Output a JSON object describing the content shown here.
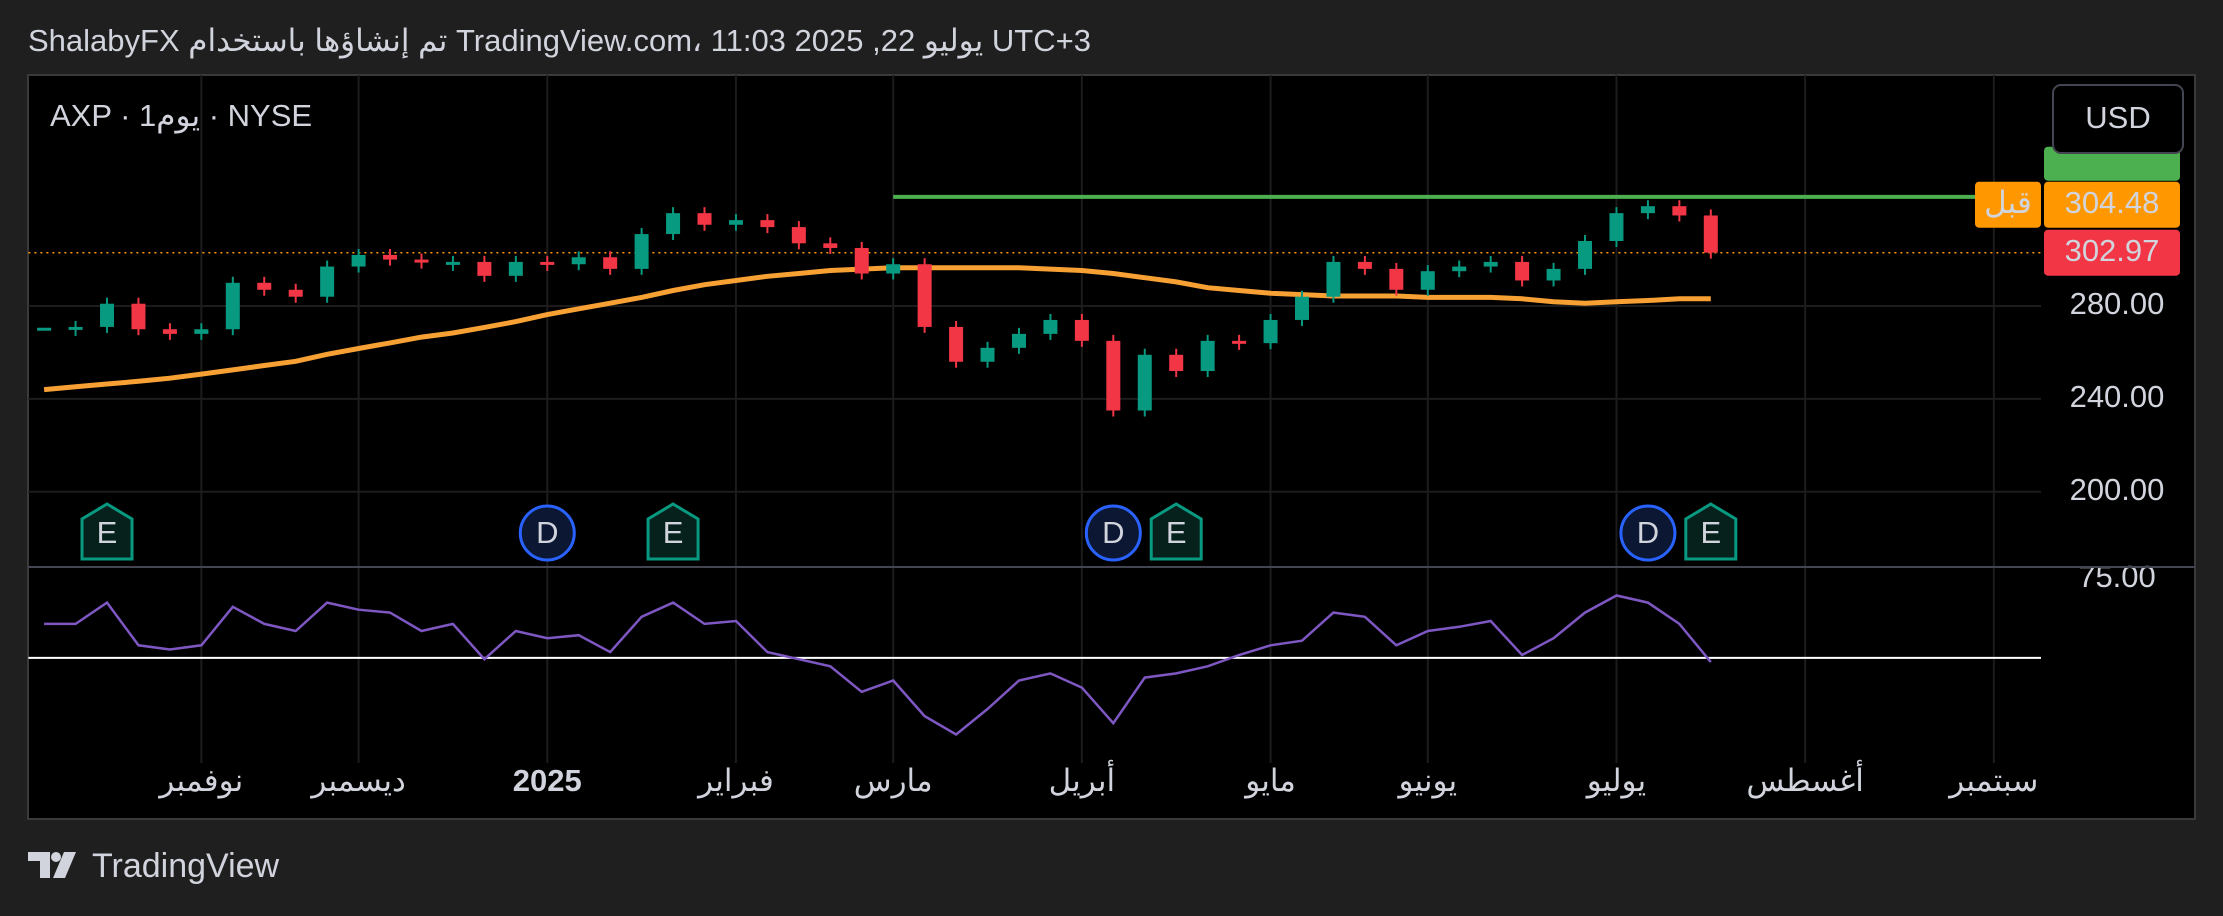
{
  "header": {
    "attribution": "ShalabyFX تم إنشاؤها باستخدام TradingView.com، 11:03 2025 ,22 يوليو UTC+3"
  },
  "footer": {
    "brand": "TradingView"
  },
  "chart_data": {
    "type": "candlestick",
    "symbol": "AXP · 1يوم · NYSE",
    "currency": "USD",
    "categories": [
      null,
      null,
      null,
      null,
      null,
      "نوفمبر",
      null,
      null,
      null,
      null,
      "ديسمبر",
      null,
      null,
      null,
      null,
      null,
      "2025",
      null,
      null,
      null,
      null,
      null,
      "فبراير",
      null,
      null,
      null,
      null,
      "مارس",
      null,
      null,
      null,
      null,
      null,
      "أبريل",
      null,
      null,
      null,
      null,
      null,
      "مايو",
      null,
      null,
      null,
      null,
      "يونيو",
      null,
      null,
      null,
      null,
      null,
      "يوليو",
      null,
      null,
      null,
      null,
      null,
      "أغسطس",
      null,
      null,
      null,
      null,
      null,
      "سبتمبر",
      null
    ],
    "values": [
      270,
      271,
      281,
      270,
      268,
      270,
      290,
      287,
      284,
      297,
      302,
      300,
      299,
      299,
      293,
      299,
      298,
      301,
      296,
      311,
      320,
      315,
      317,
      314,
      307,
      305,
      294,
      298,
      271,
      256,
      262,
      268,
      274,
      265,
      235,
      259,
      252,
      265,
      264,
      274,
      284,
      299,
      296,
      287,
      295,
      297,
      299,
      291,
      296,
      308,
      320,
      323,
      319,
      302.97,
      null,
      null,
      null,
      null,
      null,
      null,
      null,
      null,
      null,
      null
    ],
    "up_color": "#089981",
    "down_color": "#f23645",
    "ylim": [
      167.6,
      379.5
    ],
    "yticks": [
      {
        "value": 200,
        "label": "200.00"
      },
      {
        "value": 240,
        "label": "240.00"
      },
      {
        "value": 280,
        "label": "280.00"
      }
    ],
    "grid": true,
    "ma": {
      "color": "#f7a034",
      "values": [
        244.0,
        245.2,
        246.4,
        247.6,
        248.9,
        250.7,
        252.5,
        254.4,
        256.2,
        259.2,
        261.7,
        264.1,
        266.6,
        268.4,
        270.8,
        273.3,
        276.3,
        278.8,
        281.2,
        283.7,
        286.7,
        289.2,
        291.0,
        292.8,
        294.0,
        295.3,
        295.9,
        296.5,
        296.5,
        296.5,
        296.5,
        296.5,
        295.9,
        295.3,
        294.0,
        292.2,
        290.4,
        287.9,
        286.7,
        285.5,
        284.9,
        284.3,
        284.3,
        284.3,
        283.7,
        283.7,
        283.7,
        283.1,
        281.8,
        281.2,
        281.8,
        282.4,
        283.1,
        283.1,
        null,
        null,
        null,
        null,
        null,
        null,
        null,
        null,
        null,
        null
      ]
    },
    "resistance": {
      "value": 327,
      "color": "#4caf50"
    },
    "pre_market": {
      "label": "قبل",
      "value": 304.48,
      "color": "#ff9800"
    },
    "events": [
      {
        "label": "E",
        "index": 2
      },
      {
        "label": "D",
        "index": 16
      },
      {
        "label": "E",
        "index": 20
      },
      {
        "label": "D",
        "index": 34
      },
      {
        "label": "E",
        "index": 36
      },
      {
        "label": "D",
        "index": 51
      },
      {
        "label": "E",
        "index": 53
      }
    ],
    "rsi": {
      "color": "#7e57c2",
      "values": [
        60.5,
        60.5,
        67.1,
        53.9,
        52.6,
        53.9,
        65.8,
        60.5,
        58.3,
        67.1,
        64.9,
        64.0,
        58.3,
        60.5,
        49.6,
        58.3,
        56.1,
        57.0,
        51.8,
        62.7,
        67.1,
        60.5,
        61.4,
        51.8,
        49.6,
        47.4,
        39.5,
        43.0,
        32.0,
        26.3,
        34.2,
        43.0,
        45.2,
        40.8,
        29.8,
        43.9,
        45.2,
        47.4,
        50.9,
        53.9,
        55.3,
        64.0,
        62.7,
        53.9,
        58.3,
        59.6,
        61.4,
        50.9,
        56.1,
        64.0,
        69.3,
        67.1,
        60.5,
        48.7,
        null,
        null,
        null,
        null,
        null,
        null,
        null,
        null,
        null,
        null
      ],
      "ylim": [
        17.5,
        78.1
      ],
      "yticks": [
        {
          "value": 75,
          "label": "75.00"
        }
      ],
      "level": 50
    }
  }
}
